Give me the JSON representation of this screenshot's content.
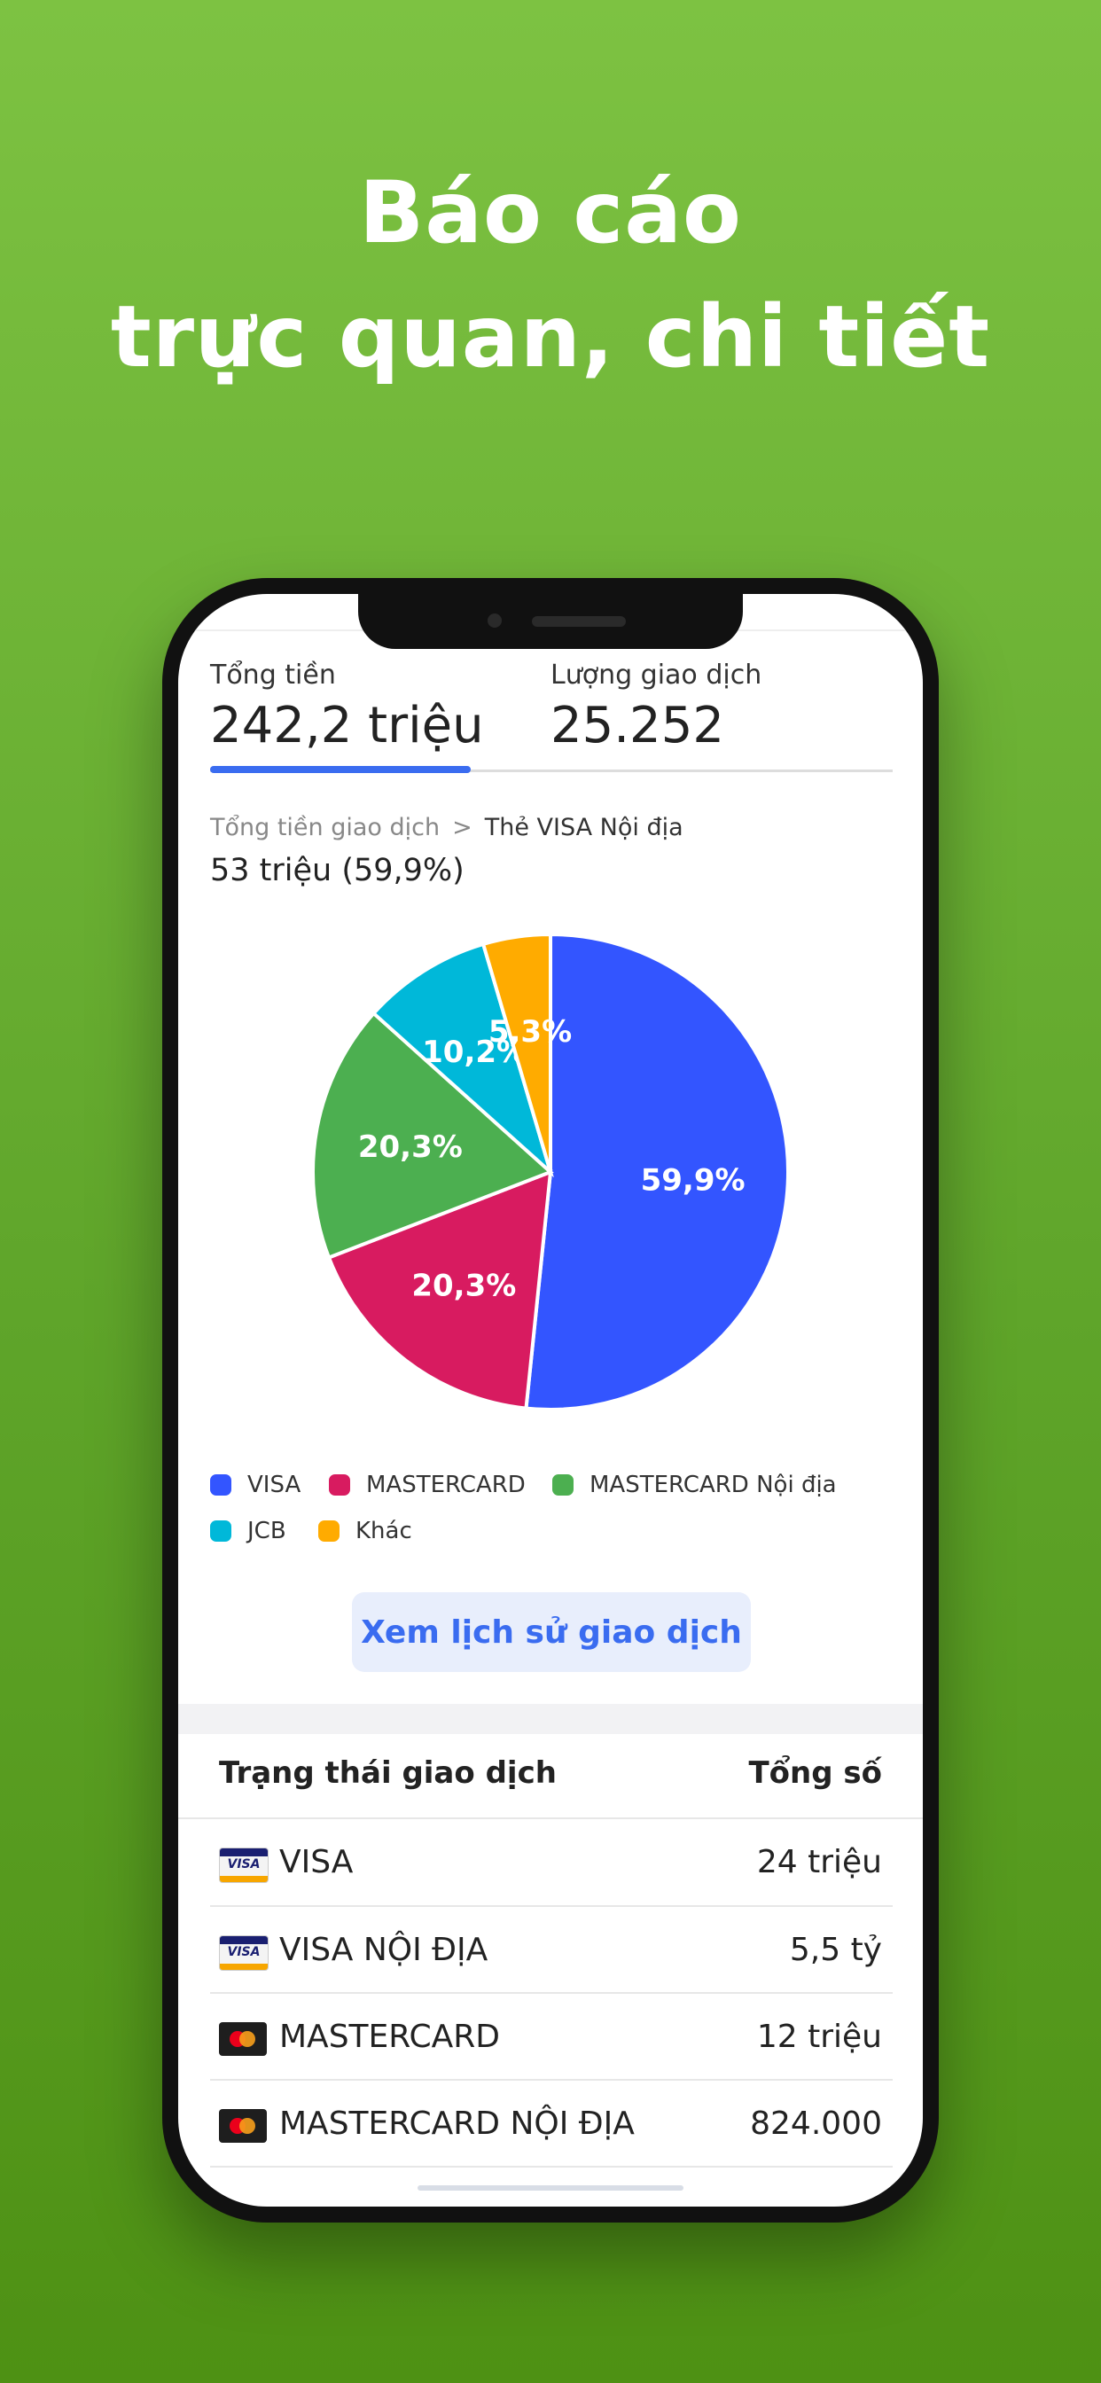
{
  "headline": {
    "line1": "Báo cáo",
    "line2": "trực quan, chi tiết"
  },
  "summary": {
    "total_label": "Tổng tiền",
    "total_value": "242,2 triệu",
    "count_label": "Lượng giao dịch",
    "count_value": "25.252"
  },
  "breadcrumb": {
    "parent": "Tổng tiền giao dịch",
    "separator": ">",
    "current": "Thẻ VISA Nội địa",
    "selected_value": "53 triệu (59,9%)"
  },
  "chart_data": {
    "type": "pie",
    "slices": [
      {
        "label": "VISA",
        "value": 59.9,
        "text": "59,9%",
        "color": "#3355ff"
      },
      {
        "label": "MASTERCARD",
        "value": 20.3,
        "text": "20,3%",
        "color": "#d81b60"
      },
      {
        "label": "MASTERCARD Nội địa",
        "value": 20.3,
        "text": "20,3%",
        "color": "#4caf50"
      },
      {
        "label": "JCB",
        "value": 10.2,
        "text": "10,2%",
        "color": "#00b8d9"
      },
      {
        "label": "Khác",
        "value": 5.3,
        "text": "5,3%",
        "color": "#ffab00"
      }
    ],
    "legend_placement": "bottom"
  },
  "legend": [
    {
      "label": "VISA",
      "color": "#3355ff"
    },
    {
      "label": "MASTERCARD",
      "color": "#d81b60"
    },
    {
      "label": "MASTERCARD Nội địa",
      "color": "#4caf50"
    },
    {
      "label": "JCB",
      "color": "#00b8d9"
    },
    {
      "label": "Khác",
      "color": "#ffab00"
    }
  ],
  "history_button": {
    "label": "Xem lịch sử giao dịch"
  },
  "table": {
    "col_status": "Trạng thái giao dịch",
    "col_total": "Tổng số",
    "rows": [
      {
        "icon": "visa-card-icon",
        "name": "VISA",
        "amount": "24 triệu"
      },
      {
        "icon": "visa-card-icon",
        "name": "VISA NỘI ĐỊA",
        "amount": "5,5 tỷ"
      },
      {
        "icon": "mastercard-icon",
        "name": "MASTERCARD",
        "amount": "12 triệu"
      },
      {
        "icon": "mastercard-icon",
        "name": "MASTERCARD NỘI ĐỊA",
        "amount": "824.000"
      }
    ]
  },
  "colors": {
    "background": "#6cb332",
    "accent": "#3a6cf0"
  }
}
